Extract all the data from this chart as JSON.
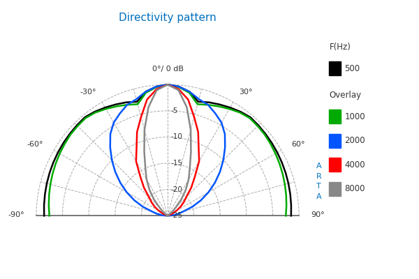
{
  "title": "Directivity pattern",
  "title_color": "#0070C0",
  "background_color": "#ffffff",
  "grid_color": "#aaaaaa",
  "r_ticks": [
    0,
    -5,
    -10,
    -15,
    -20,
    -25
  ],
  "angle_label_map": {
    "-90": "-90°",
    "-60": "-60°",
    "-30": "-30°",
    "0": "0°/ 0 dB",
    "30": "30°",
    "60": "60°",
    "90": "90°"
  },
  "legend_items": [
    {
      "label": "F(Hz)",
      "color": null,
      "is_header": true
    },
    {
      "label": "500",
      "color": "#000000",
      "is_header": false
    },
    {
      "label": "Overlay",
      "color": null,
      "is_header": true
    },
    {
      "label": "1000",
      "color": "#00aa00",
      "is_header": false
    },
    {
      "label": "2000",
      "color": "#0055ff",
      "is_header": false
    },
    {
      "label": "4000",
      "color": "#ff0000",
      "is_header": false
    },
    {
      "label": "8000",
      "color": "#888888",
      "is_header": false
    }
  ],
  "arta_color": "#0070C0",
  "db_min": -25,
  "curves": {
    "500": {
      "color": "#000000",
      "lw": 1.8,
      "angles_deg": [
        -90,
        -85,
        -80,
        -75,
        -70,
        -65,
        -60,
        -55,
        -50,
        -45,
        -40,
        -35,
        -30,
        -25,
        -20,
        -15,
        -10,
        -5,
        0,
        5,
        10,
        15,
        20,
        25,
        30,
        35,
        40,
        45,
        50,
        55,
        60,
        65,
        70,
        75,
        80,
        85,
        90
      ],
      "dB": [
        -1.5,
        -1.4,
        -1.3,
        -1.2,
        -1.1,
        -1.0,
        -0.9,
        -0.8,
        -0.7,
        -0.6,
        -0.5,
        -0.8,
        -1.2,
        -1.6,
        -2.0,
        -2.5,
        -1.0,
        -0.3,
        0,
        -0.3,
        -1.0,
        -2.5,
        -2.0,
        -1.6,
        -1.2,
        -0.8,
        -0.5,
        -0.6,
        -0.7,
        -0.8,
        -0.9,
        -1.0,
        -1.1,
        -1.2,
        -1.3,
        -1.4,
        -1.5
      ]
    },
    "1000": {
      "color": "#00aa00",
      "lw": 1.8,
      "angles_deg": [
        -90,
        -85,
        -80,
        -75,
        -70,
        -65,
        -60,
        -55,
        -50,
        -45,
        -40,
        -35,
        -30,
        -25,
        -20,
        -15,
        -10,
        -5,
        0,
        5,
        10,
        15,
        20,
        25,
        30,
        35,
        40,
        45,
        50,
        55,
        60,
        65,
        70,
        75,
        80,
        85,
        90
      ],
      "dB": [
        -2.5,
        -2.3,
        -2.1,
        -1.9,
        -1.7,
        -1.5,
        -1.3,
        -1.1,
        -0.9,
        -0.8,
        -0.7,
        -1.0,
        -1.5,
        -2.0,
        -2.5,
        -3.0,
        -1.2,
        -0.4,
        0,
        -0.4,
        -1.2,
        -3.0,
        -2.5,
        -2.0,
        -1.5,
        -1.0,
        -0.7,
        -0.8,
        -0.9,
        -1.1,
        -1.3,
        -1.5,
        -1.7,
        -1.9,
        -2.1,
        -2.3,
        -2.5
      ]
    },
    "2000": {
      "color": "#0055ff",
      "lw": 1.8,
      "angles_deg": [
        -90,
        -85,
        -80,
        -75,
        -70,
        -65,
        -60,
        -55,
        -50,
        -45,
        -40,
        -35,
        -30,
        -25,
        -20,
        -15,
        -10,
        -5,
        0,
        5,
        10,
        15,
        20,
        25,
        30,
        35,
        40,
        45,
        50,
        55,
        60,
        65,
        70,
        75,
        80,
        85,
        90
      ],
      "dB": [
        -25,
        -24,
        -23,
        -22,
        -20,
        -18,
        -16,
        -14,
        -12,
        -10,
        -8,
        -6,
        -4.5,
        -3.5,
        -2.5,
        -2.0,
        -1.0,
        -0.3,
        0,
        -0.3,
        -1.0,
        -2.0,
        -2.5,
        -3.5,
        -4.5,
        -6,
        -8,
        -10,
        -12,
        -14,
        -16,
        -18,
        -20,
        -22,
        -23,
        -24,
        -25
      ]
    },
    "4000": {
      "color": "#ff0000",
      "lw": 1.8,
      "angles_deg": [
        -90,
        -85,
        -80,
        -75,
        -70,
        -65,
        -60,
        -55,
        -50,
        -45,
        -40,
        -35,
        -30,
        -25,
        -20,
        -15,
        -10,
        -5,
        0,
        5,
        10,
        15,
        20,
        25,
        30,
        35,
        40,
        45,
        50,
        55,
        60,
        65,
        70,
        75,
        80,
        85,
        90
      ],
      "dB": [
        -25,
        -25,
        -25,
        -25,
        -25,
        -24,
        -23,
        -22,
        -21,
        -20,
        -18,
        -16,
        -13,
        -11,
        -8,
        -5.5,
        -2.5,
        -0.8,
        0,
        -0.8,
        -2.5,
        -5.5,
        -8,
        -11,
        -13,
        -16,
        -18,
        -20,
        -21,
        -22,
        -23,
        -24,
        -25,
        -25,
        -25,
        -25,
        -25
      ]
    },
    "8000": {
      "color": "#888888",
      "lw": 1.8,
      "angles_deg": [
        -90,
        -85,
        -80,
        -75,
        -70,
        -65,
        -60,
        -55,
        -50,
        -45,
        -40,
        -35,
        -30,
        -25,
        -20,
        -15,
        -10,
        -5,
        0,
        5,
        10,
        15,
        20,
        25,
        30,
        35,
        40,
        45,
        50,
        55,
        60,
        65,
        70,
        75,
        80,
        85,
        90
      ],
      "dB": [
        -25,
        -25,
        -25,
        -25,
        -25,
        -25,
        -25,
        -25,
        -24,
        -23,
        -21,
        -19,
        -17,
        -15,
        -12,
        -8,
        -4,
        -1,
        0,
        -1,
        -4,
        -8,
        -12,
        -15,
        -17,
        -19,
        -21,
        -23,
        -24,
        -25,
        -25,
        -25,
        -25,
        -25,
        -25,
        -25,
        -25
      ]
    }
  }
}
